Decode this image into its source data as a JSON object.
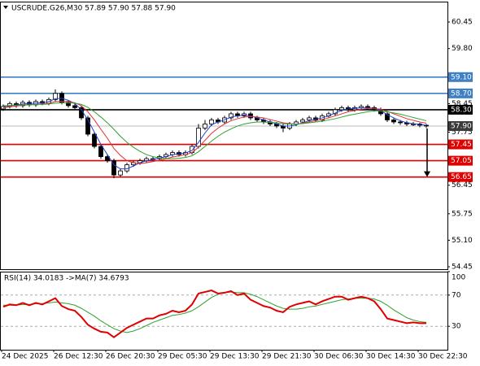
{
  "chart_data": {
    "type": "candlestick",
    "title": "USCRUDE.G26,M30  57.89 57.90 57.88 57.90",
    "categories": [
      "24 Dec 2025",
      null,
      null,
      null,
      null,
      null,
      null,
      null,
      "26 Dec 12:30",
      null,
      null,
      null,
      null,
      null,
      null,
      null,
      "26 Dec 20:30",
      null,
      null,
      null,
      null,
      null,
      null,
      null,
      "29 Dec 05:30",
      null,
      null,
      null,
      null,
      null,
      null,
      null,
      "29 Dec 13:30",
      null,
      null,
      null,
      null,
      null,
      null,
      null,
      "29 Dec 21:30",
      null,
      null,
      null,
      null,
      null,
      null,
      null,
      "30 Dec 06:30",
      null,
      null,
      null,
      null,
      null,
      null,
      null,
      "30 Dec 14:30",
      null,
      null,
      null,
      null,
      null,
      null,
      null,
      "30 Dec 22:30",
      null
    ],
    "open": [
      58.32,
      58.38,
      58.45,
      58.4,
      58.48,
      58.42,
      58.5,
      58.46,
      58.55,
      58.7,
      58.48,
      58.4,
      58.35,
      58.1,
      57.7,
      57.4,
      57.15,
      57.05,
      56.7,
      56.8,
      56.95,
      57.0,
      57.05,
      57.1,
      57.1,
      57.15,
      57.2,
      57.25,
      57.2,
      57.25,
      57.4,
      57.85,
      57.95,
      58.05,
      58.0,
      58.1,
      58.2,
      58.15,
      58.2,
      58.1,
      58.05,
      58.0,
      57.95,
      57.9,
      57.85,
      57.95,
      58.0,
      58.05,
      58.1,
      58.05,
      58.15,
      58.2,
      58.3,
      58.35,
      58.3,
      58.35,
      58.38,
      58.35,
      58.3,
      58.2,
      58.05,
      58.0,
      57.98,
      57.95,
      57.95,
      57.92
    ],
    "high": [
      58.43,
      58.5,
      58.5,
      58.53,
      58.53,
      58.55,
      58.55,
      58.6,
      58.8,
      58.75,
      58.53,
      58.45,
      58.4,
      58.15,
      57.75,
      57.45,
      57.2,
      57.1,
      56.85,
      57.0,
      57.05,
      57.1,
      57.15,
      57.15,
      57.2,
      57.25,
      57.3,
      57.3,
      57.3,
      57.45,
      57.95,
      58.05,
      58.1,
      58.1,
      58.15,
      58.25,
      58.25,
      58.25,
      58.25,
      58.15,
      58.1,
      58.05,
      58.0,
      57.95,
      58.0,
      58.05,
      58.1,
      58.15,
      58.15,
      58.2,
      58.25,
      58.35,
      58.4,
      58.4,
      58.4,
      58.43,
      58.43,
      58.4,
      58.35,
      58.25,
      58.1,
      58.05,
      58.03,
      58.0,
      57.98,
      57.95
    ],
    "low": [
      58.27,
      58.33,
      58.35,
      58.35,
      58.37,
      58.37,
      58.41,
      58.41,
      58.5,
      58.43,
      58.35,
      58.3,
      58.05,
      57.65,
      57.35,
      57.1,
      57.0,
      56.62,
      56.65,
      56.75,
      56.9,
      56.95,
      57.0,
      57.05,
      57.05,
      57.1,
      57.15,
      57.15,
      57.15,
      57.2,
      57.35,
      57.8,
      57.9,
      57.95,
      57.95,
      58.05,
      58.1,
      58.1,
      58.05,
      58.0,
      57.95,
      57.9,
      57.85,
      57.75,
      57.8,
      57.9,
      57.95,
      58.0,
      58.0,
      58.0,
      58.1,
      58.15,
      58.25,
      58.25,
      58.25,
      58.3,
      58.3,
      58.25,
      58.15,
      58.0,
      57.95,
      57.93,
      57.9,
      57.9,
      57.87,
      57.85
    ],
    "close": [
      58.38,
      58.45,
      58.4,
      58.48,
      58.42,
      58.5,
      58.46,
      58.55,
      58.7,
      58.48,
      58.4,
      58.35,
      58.1,
      57.7,
      57.4,
      57.15,
      57.05,
      56.7,
      56.8,
      56.95,
      57.0,
      57.05,
      57.1,
      57.1,
      57.15,
      57.2,
      57.25,
      57.2,
      57.25,
      57.4,
      57.85,
      57.95,
      58.05,
      58.0,
      58.1,
      58.2,
      58.15,
      58.2,
      58.1,
      58.05,
      58.0,
      57.95,
      57.9,
      57.85,
      57.95,
      58.0,
      58.05,
      58.1,
      58.05,
      58.15,
      58.2,
      58.3,
      58.35,
      58.3,
      58.35,
      58.38,
      58.35,
      58.3,
      58.2,
      58.05,
      58.0,
      57.98,
      57.95,
      57.95,
      57.92,
      57.9
    ],
    "series": [
      {
        "color": "#2040d0",
        "values": [
          58.35,
          58.4,
          58.42,
          58.44,
          58.45,
          58.46,
          58.47,
          58.5,
          58.57,
          58.58,
          58.53,
          58.45,
          58.3,
          58.05,
          57.75,
          57.45,
          57.2,
          56.95,
          56.85,
          56.85,
          56.92,
          57.0,
          57.05,
          57.08,
          57.12,
          57.15,
          57.2,
          57.22,
          57.24,
          57.3,
          57.5,
          57.73,
          57.93,
          58.0,
          58.05,
          58.12,
          58.15,
          58.17,
          58.15,
          58.1,
          58.05,
          58.0,
          57.95,
          57.9,
          57.9,
          57.93,
          57.98,
          58.03,
          58.07,
          58.1,
          58.15,
          58.22,
          58.28,
          58.32,
          58.33,
          58.35,
          58.35,
          58.33,
          58.28,
          58.18,
          58.1,
          58.03,
          57.98,
          57.96,
          57.94,
          57.92
        ]
      },
      {
        "color": "#e03030",
        "values": [
          58.35,
          58.37,
          58.39,
          58.41,
          58.42,
          58.43,
          58.44,
          58.46,
          58.5,
          58.51,
          58.5,
          58.47,
          58.4,
          58.25,
          58.05,
          57.82,
          57.6,
          57.35,
          57.18,
          57.05,
          57.0,
          56.98,
          57.0,
          57.03,
          57.06,
          57.1,
          57.14,
          57.17,
          57.2,
          57.25,
          57.38,
          57.55,
          57.72,
          57.85,
          57.95,
          58.03,
          58.08,
          58.12,
          58.13,
          58.12,
          58.1,
          58.06,
          58.02,
          57.98,
          57.96,
          57.95,
          57.97,
          58.0,
          58.03,
          58.06,
          58.1,
          58.15,
          58.2,
          58.25,
          58.28,
          58.31,
          58.33,
          58.33,
          58.31,
          58.26,
          58.2,
          58.14,
          58.08,
          58.04,
          58.0,
          57.97
        ]
      },
      {
        "color": "#30a030",
        "values": [
          58.4,
          58.4,
          58.41,
          58.42,
          58.42,
          58.43,
          58.43,
          58.44,
          58.46,
          58.47,
          58.47,
          58.46,
          58.43,
          58.36,
          58.25,
          58.12,
          57.98,
          57.82,
          57.65,
          57.5,
          57.38,
          57.28,
          57.2,
          57.15,
          57.12,
          57.1,
          57.1,
          57.11,
          57.13,
          57.17,
          57.27,
          57.4,
          57.53,
          57.65,
          57.75,
          57.83,
          57.9,
          57.95,
          57.98,
          58.0,
          58.0,
          57.99,
          57.98,
          57.96,
          57.95,
          57.95,
          57.96,
          57.98,
          58.0,
          58.02,
          58.05,
          58.08,
          58.12,
          58.16,
          58.19,
          58.22,
          58.25,
          58.27,
          58.27,
          58.25,
          58.22,
          58.19,
          58.15,
          58.11,
          58.07,
          58.03
        ]
      }
    ],
    "ylim": [
      54.39,
      60.95
    ],
    "yticks": [
      60.45,
      {
        "value": 59.8,
        "label": "59.80"
      },
      58.45,
      57.75,
      56.45,
      55.75,
      {
        "value": 55.1,
        "label": "55.10"
      },
      54.45
    ],
    "levels": [
      {
        "value": 59.1,
        "label": "59.10",
        "color": "#3f7fc4"
      },
      {
        "value": 58.7,
        "label": "58.70",
        "color": "#3f7fc4"
      },
      {
        "value": 58.3,
        "label": "58.30",
        "color": "#000000"
      },
      {
        "value": 57.9,
        "label": "57.90",
        "color": "#3a3a3a"
      },
      {
        "value": 57.45,
        "label": "57.45",
        "color": "#e00000"
      },
      {
        "value": 57.05,
        "label": "57.05",
        "color": "#e00000"
      },
      {
        "value": 56.65,
        "label": "56.65",
        "color": "#e00000"
      }
    ],
    "rsi": {
      "title": "RSI(14) 34.0183  ->MA(7) 34.6793",
      "ylim": [
        0,
        100
      ],
      "yticks": [
        100,
        70,
        30
      ],
      "levels": [
        70,
        30
      ],
      "color": "#e00000",
      "ma_color": "#30a030",
      "values": [
        55,
        58,
        57,
        60,
        57,
        60,
        58,
        62,
        66,
        56,
        52,
        50,
        42,
        32,
        27,
        23,
        22,
        16,
        22,
        28,
        32,
        36,
        40,
        40,
        44,
        46,
        50,
        48,
        50,
        58,
        72,
        74,
        76,
        72,
        73,
        75,
        70,
        72,
        64,
        60,
        56,
        54,
        50,
        48,
        55,
        58,
        60,
        62,
        58,
        62,
        65,
        68,
        68,
        64,
        66,
        68,
        66,
        62,
        52,
        40,
        38,
        36,
        34,
        35,
        34,
        34
      ],
      "ma": [
        57,
        57,
        57,
        58,
        58,
        59,
        59,
        60,
        61,
        60,
        59,
        57,
        53,
        48,
        43,
        37,
        32,
        27,
        24,
        22,
        24,
        27,
        31,
        35,
        38,
        41,
        44,
        45,
        47,
        50,
        55,
        61,
        67,
        71,
        73,
        74,
        73,
        73,
        71,
        68,
        64,
        60,
        56,
        53,
        52,
        52,
        53,
        55,
        56,
        58,
        60,
        62,
        64,
        65,
        66,
        66,
        66,
        65,
        62,
        57,
        51,
        46,
        41,
        38,
        36,
        35
      ]
    }
  }
}
